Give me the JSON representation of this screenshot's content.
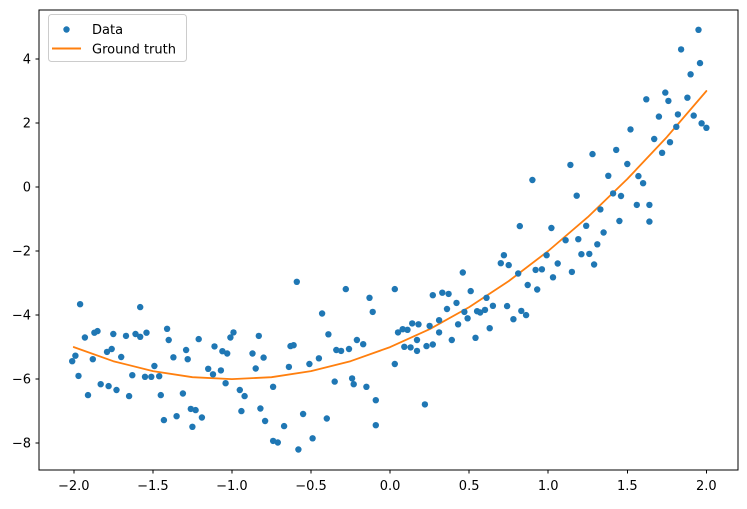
{
  "chart_data": {
    "type": "scatter",
    "title": "",
    "xlabel": "",
    "ylabel": "",
    "grid": false,
    "background": "#ffffff",
    "xlim": [
      -2.22,
      2.2
    ],
    "ylim": [
      -8.84,
      5.53
    ],
    "x_ticks": {
      "values": [
        -2.0,
        -1.5,
        -1.0,
        -0.5,
        0.0,
        0.5,
        1.0,
        1.5,
        2.0
      ],
      "labels": [
        "−2.0",
        "−1.5",
        "−1.0",
        "−0.5",
        "0.0",
        "0.5",
        "1.0",
        "1.5",
        "2.0"
      ]
    },
    "y_ticks": {
      "values": [
        -8,
        -6,
        -4,
        -2,
        0,
        2,
        4
      ],
      "labels": [
        "−8",
        "−6",
        "−4",
        "−2",
        "0",
        "2",
        "4"
      ]
    },
    "legend": {
      "position": "upper left",
      "entries": [
        {
          "label": "Data",
          "marker": "dot",
          "color": "#1f77b4"
        },
        {
          "label": "Ground truth",
          "marker": "line",
          "color": "#ff7f0e"
        }
      ]
    },
    "series": [
      {
        "name": "Data",
        "type": "scatter",
        "color": "#1f77b4",
        "marker_radius": 3.2,
        "points": [
          [
            -1.96,
            -3.66
          ],
          [
            -1.58,
            -3.75
          ],
          [
            -1.93,
            -4.7
          ],
          [
            -1.87,
            -4.55
          ],
          [
            -1.85,
            -4.5
          ],
          [
            -1.75,
            -4.59
          ],
          [
            -1.67,
            -4.65
          ],
          [
            -1.61,
            -4.59
          ],
          [
            -1.58,
            -4.68
          ],
          [
            -1.54,
            -4.55
          ],
          [
            -1.41,
            -4.43
          ],
          [
            -1.4,
            -4.78
          ],
          [
            -2.01,
            -5.44
          ],
          [
            -1.99,
            -5.27
          ],
          [
            -1.88,
            -5.38
          ],
          [
            -1.79,
            -5.15
          ],
          [
            -1.76,
            -5.06
          ],
          [
            -1.7,
            -5.31
          ],
          [
            -1.37,
            -5.32
          ],
          [
            -1.29,
            -5.09
          ],
          [
            -1.28,
            -5.38
          ],
          [
            -1.21,
            -4.75
          ],
          [
            -1.11,
            -4.98
          ],
          [
            -1.06,
            -5.13
          ],
          [
            -1.03,
            -5.2
          ],
          [
            -1.15,
            -5.68
          ],
          [
            -1.12,
            -5.85
          ],
          [
            -1.07,
            -5.73
          ],
          [
            -1.97,
            -5.9
          ],
          [
            -1.91,
            -6.5
          ],
          [
            -1.83,
            -6.16
          ],
          [
            -1.78,
            -6.22
          ],
          [
            -1.73,
            -6.34
          ],
          [
            -1.65,
            -6.53
          ],
          [
            -1.63,
            -5.88
          ],
          [
            -1.55,
            -5.93
          ],
          [
            -1.51,
            -5.93
          ],
          [
            -1.46,
            -5.91
          ],
          [
            -1.49,
            -5.59
          ],
          [
            -1.45,
            -6.5
          ],
          [
            -1.43,
            -7.28
          ],
          [
            -1.35,
            -7.16
          ],
          [
            -1.31,
            -6.45
          ],
          [
            -1.26,
            -6.93
          ],
          [
            -1.23,
            -6.97
          ],
          [
            -1.19,
            -7.2
          ],
          [
            -1.25,
            -7.49
          ],
          [
            -0.59,
            -2.96
          ],
          [
            -0.28,
            -3.19
          ],
          [
            -0.13,
            -3.46
          ],
          [
            -0.43,
            -3.95
          ],
          [
            -0.11,
            -3.9
          ],
          [
            -1.01,
            -4.7
          ],
          [
            -0.99,
            -4.54
          ],
          [
            -0.83,
            -4.65
          ],
          [
            -0.39,
            -4.6
          ],
          [
            -0.63,
            -4.97
          ],
          [
            -0.61,
            -4.94
          ],
          [
            -0.87,
            -5.2
          ],
          [
            -0.8,
            -5.33
          ],
          [
            -0.34,
            -5.09
          ],
          [
            -0.31,
            -5.12
          ],
          [
            -0.26,
            -5.06
          ],
          [
            -0.21,
            -4.78
          ],
          [
            -0.17,
            -4.91
          ],
          [
            -0.45,
            -5.35
          ],
          [
            -0.51,
            -5.53
          ],
          [
            -0.85,
            -5.67
          ],
          [
            -0.64,
            -5.62
          ],
          [
            -1.04,
            -6.13
          ],
          [
            -0.95,
            -6.34
          ],
          [
            -0.92,
            -6.53
          ],
          [
            -0.74,
            -6.24
          ],
          [
            -0.94,
            -7.0
          ],
          [
            -0.82,
            -6.92
          ],
          [
            -0.79,
            -7.31
          ],
          [
            -0.67,
            -7.47
          ],
          [
            -0.55,
            -7.09
          ],
          [
            -0.4,
            -7.23
          ],
          [
            -0.74,
            -7.93
          ],
          [
            -0.71,
            -7.98
          ],
          [
            -0.58,
            -8.2
          ],
          [
            -0.49,
            -7.85
          ],
          [
            -0.35,
            -6.08
          ],
          [
            -0.24,
            -5.98
          ],
          [
            -0.23,
            -6.16
          ],
          [
            -0.15,
            -6.24
          ],
          [
            -0.09,
            -6.66
          ],
          [
            -0.09,
            -7.44
          ],
          [
            0.03,
            -5.53
          ],
          [
            0.72,
            -2.13
          ],
          [
            0.7,
            -2.38
          ],
          [
            0.75,
            -2.44
          ],
          [
            0.99,
            -2.13
          ],
          [
            1.06,
            -2.39
          ],
          [
            0.96,
            -2.57
          ],
          [
            0.92,
            -2.59
          ],
          [
            1.03,
            -2.82
          ],
          [
            0.81,
            -2.7
          ],
          [
            0.46,
            -2.67
          ],
          [
            0.03,
            -3.19
          ],
          [
            0.27,
            -3.38
          ],
          [
            0.33,
            -3.3
          ],
          [
            0.37,
            -3.34
          ],
          [
            0.42,
            -3.62
          ],
          [
            0.36,
            -3.81
          ],
          [
            0.51,
            -3.25
          ],
          [
            0.61,
            -3.46
          ],
          [
            0.65,
            -3.71
          ],
          [
            0.55,
            -3.88
          ],
          [
            0.57,
            -3.92
          ],
          [
            0.6,
            -3.84
          ],
          [
            0.47,
            -3.9
          ],
          [
            0.87,
            -3.06
          ],
          [
            0.93,
            -3.2
          ],
          [
            0.74,
            -3.72
          ],
          [
            0.83,
            -3.87
          ],
          [
            0.86,
            -4.0
          ],
          [
            0.78,
            -4.13
          ],
          [
            0.31,
            -4.16
          ],
          [
            0.43,
            -4.29
          ],
          [
            0.49,
            -4.1
          ],
          [
            0.14,
            -4.26
          ],
          [
            0.18,
            -4.29
          ],
          [
            0.25,
            -4.34
          ],
          [
            0.08,
            -4.44
          ],
          [
            0.11,
            -4.46
          ],
          [
            0.05,
            -4.54
          ],
          [
            0.31,
            -4.54
          ],
          [
            0.63,
            -4.41
          ],
          [
            0.54,
            -4.71
          ],
          [
            0.17,
            -4.78
          ],
          [
            0.27,
            -4.92
          ],
          [
            0.23,
            -4.97
          ],
          [
            0.09,
            -4.99
          ],
          [
            0.13,
            -5.01
          ],
          [
            0.17,
            -5.12
          ],
          [
            0.39,
            -4.78
          ],
          [
            0.22,
            -6.79
          ],
          [
            1.95,
            4.91
          ],
          [
            1.84,
            4.3
          ],
          [
            1.96,
            3.87
          ],
          [
            1.9,
            3.52
          ],
          [
            1.74,
            2.95
          ],
          [
            1.62,
            2.74
          ],
          [
            1.76,
            2.69
          ],
          [
            1.88,
            2.79
          ],
          [
            1.7,
            2.2
          ],
          [
            1.82,
            2.27
          ],
          [
            1.92,
            2.23
          ],
          [
            1.97,
            1.99
          ],
          [
            2.0,
            1.85
          ],
          [
            1.81,
            1.88
          ],
          [
            1.52,
            1.8
          ],
          [
            1.67,
            1.5
          ],
          [
            1.77,
            1.4
          ],
          [
            1.28,
            1.03
          ],
          [
            1.43,
            1.16
          ],
          [
            1.72,
            1.07
          ],
          [
            1.14,
            0.69
          ],
          [
            1.5,
            0.72
          ],
          [
            1.38,
            0.35
          ],
          [
            1.57,
            0.34
          ],
          [
            1.6,
            0.12
          ],
          [
            1.41,
            -0.2
          ],
          [
            1.18,
            -0.27
          ],
          [
            1.46,
            -0.28
          ],
          [
            1.33,
            -0.7
          ],
          [
            1.56,
            -0.56
          ],
          [
            1.64,
            -0.56
          ],
          [
            1.45,
            -1.06
          ],
          [
            1.64,
            -1.08
          ],
          [
            1.24,
            -1.21
          ],
          [
            1.35,
            -1.42
          ],
          [
            1.02,
            -1.28
          ],
          [
            1.11,
            -1.66
          ],
          [
            1.19,
            -1.63
          ],
          [
            1.31,
            -1.79
          ],
          [
            1.21,
            -2.1
          ],
          [
            1.26,
            -2.09
          ],
          [
            1.29,
            -2.42
          ],
          [
            1.15,
            -2.65
          ],
          [
            0.9,
            0.22
          ],
          [
            0.82,
            -1.22
          ]
        ]
      },
      {
        "name": "Ground truth",
        "type": "line",
        "color": "#ff7f0e",
        "line_width": 1.8,
        "x": [
          -2,
          -1.75,
          -1.5,
          -1.25,
          -1,
          -0.75,
          -0.5,
          -0.25,
          0,
          0.25,
          0.5,
          0.75,
          1,
          1.25,
          1.5,
          1.75,
          2
        ],
        "y": [
          -5,
          -5.44,
          -5.75,
          -5.94,
          -6,
          -5.94,
          -5.75,
          -5.44,
          -5,
          -4.44,
          -3.75,
          -2.94,
          -2,
          -0.94,
          0.25,
          1.56,
          3
        ]
      }
    ]
  }
}
